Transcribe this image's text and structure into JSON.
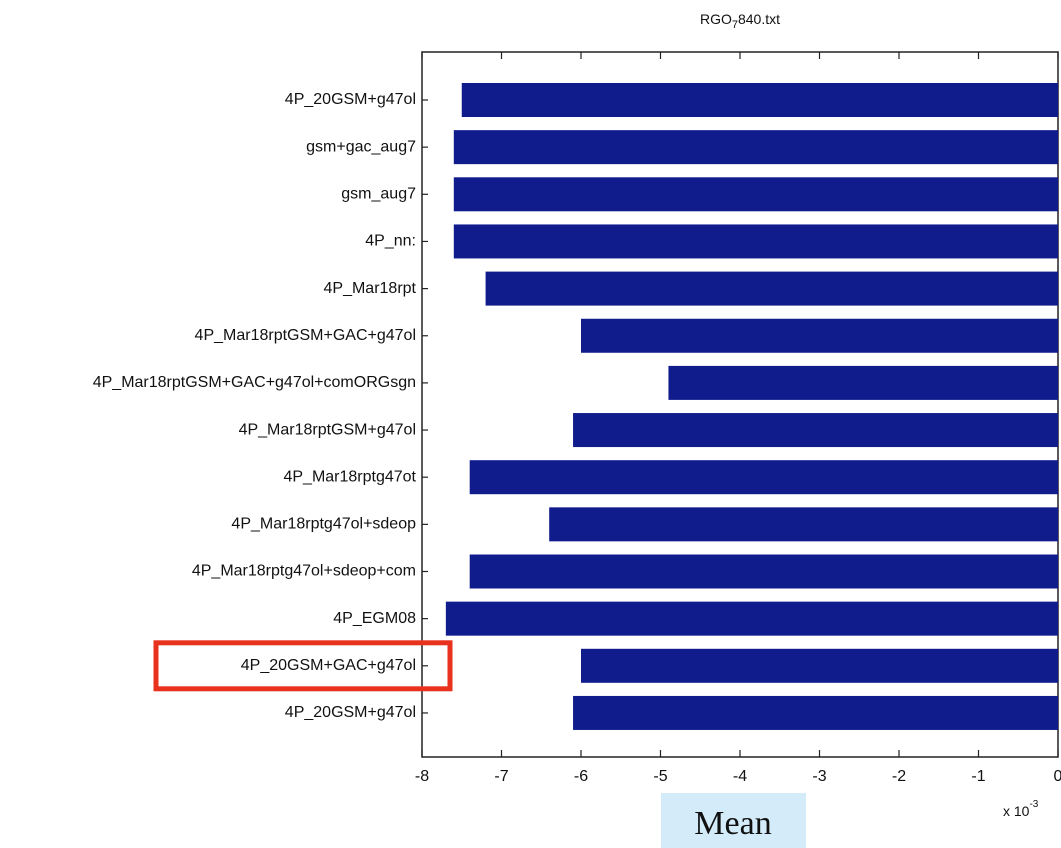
{
  "chart_data": {
    "type": "barh",
    "title": "RGO",
    "title_subscript": "7",
    "title_suffix": "840.txt",
    "categories": [
      "4P_20GSM+g47ol",
      "gsm+gac_aug7",
      "gsm_aug7",
      "4P_nn:",
      "4P_Mar18rpt",
      "4P_Mar18rptGSM+GAC+g47ol",
      "4P_Mar18rptGSM+GAC+g47ol+comORGsgn",
      "4P_Mar18rptGSM+g47ol",
      "4P_Mar18rptg47ot",
      "4P_Mar18rptg47ol+sdeop",
      "4P_Mar18rptg47ol+sdeop+com",
      "4P_EGM08",
      "4P_20GSM+GAC+g47ol",
      "4P_20GSM+g47ol"
    ],
    "values": [
      -7.5,
      -7.6,
      -7.6,
      -7.6,
      -7.2,
      -6.0,
      -4.9,
      -6.1,
      -7.4,
      -6.4,
      -7.4,
      -7.7,
      -6.0,
      -6.1
    ],
    "color": "#101b8c",
    "xlim": [
      -8,
      0
    ],
    "xticks": [
      -8,
      -7,
      -6,
      -5,
      -4,
      -3,
      -2,
      -1,
      0
    ],
    "x_multiplier": "x 10",
    "x_multiplier_exponent": "-3",
    "xlabel": "Mean",
    "highlight_index": 12,
    "highlight_color": "#e8321e",
    "xlabel_background": "#d4ebf9"
  }
}
